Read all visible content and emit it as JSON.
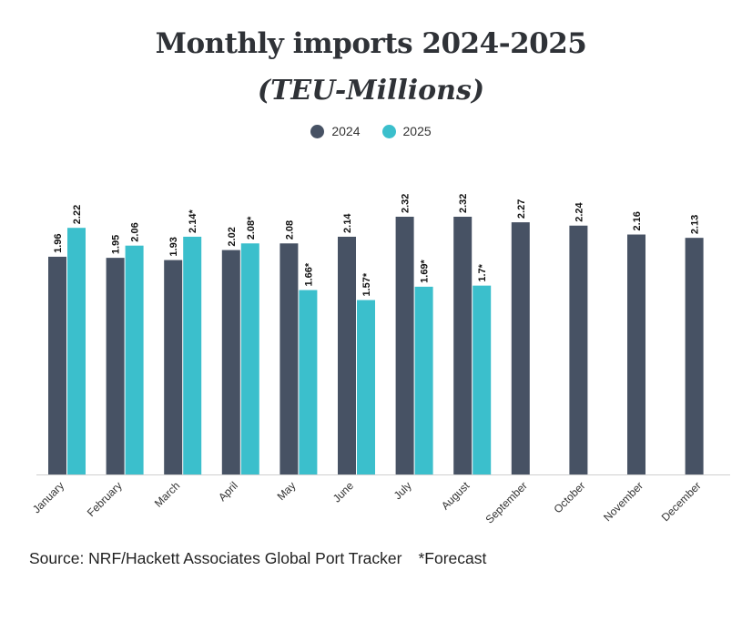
{
  "chart_data": {
    "type": "bar",
    "title": "Monthly imports 2024-2025",
    "subtitle": "(TEU-Millions)",
    "categories": [
      "January",
      "February",
      "March",
      "April",
      "May",
      "June",
      "July",
      "August",
      "September",
      "October",
      "November",
      "December"
    ],
    "series": [
      {
        "name": "2024",
        "color": "#475264",
        "values": [
          1.96,
          1.95,
          1.93,
          2.02,
          2.08,
          2.14,
          2.32,
          2.32,
          2.27,
          2.24,
          2.16,
          2.13
        ],
        "labels": [
          "1.96",
          "1.95",
          "1.93",
          "2.02",
          "2.08",
          "2.14",
          "2.32",
          "2.32",
          "2.27",
          "2.24",
          "2.16",
          "2.13"
        ]
      },
      {
        "name": "2025",
        "color": "#3bbfcc",
        "values": [
          2.22,
          2.06,
          2.14,
          2.08,
          1.66,
          1.57,
          1.69,
          1.7,
          null,
          null,
          null,
          null
        ],
        "labels": [
          "2.22",
          "2.06",
          "2.14*",
          "2.08*",
          "1.66*",
          "1.57*",
          "1.69*",
          "1.7*",
          null,
          null,
          null,
          null
        ]
      }
    ],
    "ylim": [
      0,
      2.32
    ],
    "xlabel": "",
    "ylabel": "",
    "legend_position": "top-center",
    "grid": false
  },
  "footer": {
    "source": "Source: NRF/Hackett Associates Global Port Tracker",
    "forecast_note": "*Forecast"
  }
}
